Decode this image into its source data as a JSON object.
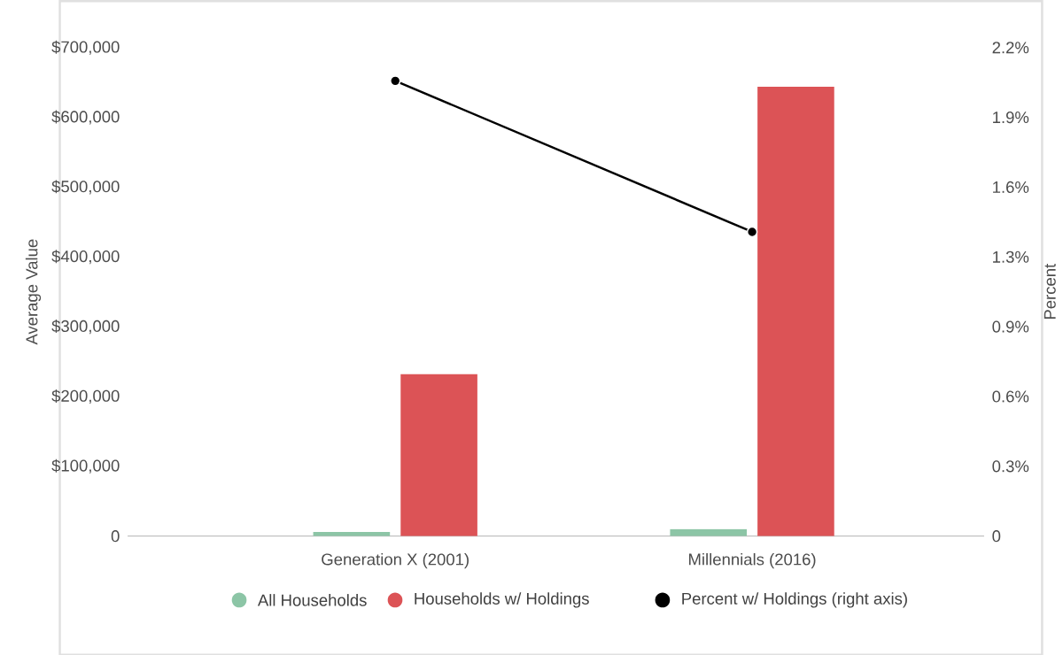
{
  "chart_data": {
    "type": "bar",
    "ylabel": "Average Value",
    "y2label": "Percent",
    "categories": [
      "Generation X (2001)",
      "Millennials (2016)"
    ],
    "series": [
      {
        "name": "All Households",
        "color": "#8cc5a6",
        "values": [
          6000,
          10000
        ]
      },
      {
        "name": "Households w/ Holdings",
        "color": "#dc5356",
        "values": [
          232000,
          644000
        ]
      },
      {
        "name": "Percent w/ Holdings (right axis)",
        "color": "#000000",
        "type": "line",
        "axis": "y2",
        "marker": "circle",
        "values": [
          2.05,
          1.37
        ]
      }
    ],
    "ylim": [
      0,
      700000
    ],
    "yticks": [
      0,
      {
        "value": 100000,
        "label": "$100,000"
      },
      {
        "value": 200000,
        "label": "$200,000"
      },
      {
        "value": 300000,
        "label": "$300,000"
      },
      {
        "value": 400000,
        "label": "$400,000"
      },
      {
        "value": 500000,
        "label": "$500,000"
      },
      {
        "value": 600000,
        "label": "$600,000"
      },
      {
        "value": 700000,
        "label": "$700,000"
      }
    ],
    "y2lim": [
      0,
      2.2
    ],
    "y2ticks": [
      0,
      {
        "value": 0.3143,
        "label": "0.3%"
      },
      {
        "value": 0.6286,
        "label": "0.6%"
      },
      {
        "value": 0.9429,
        "label": "0.9%"
      },
      {
        "value": 1.2571,
        "label": "1.3%"
      },
      {
        "value": 1.5714,
        "label": "1.6%"
      },
      {
        "value": 1.8857,
        "label": "1.9%"
      },
      {
        "value": 2.2,
        "label": "2.2%"
      }
    ],
    "legend": "bottom",
    "grid": false
  }
}
